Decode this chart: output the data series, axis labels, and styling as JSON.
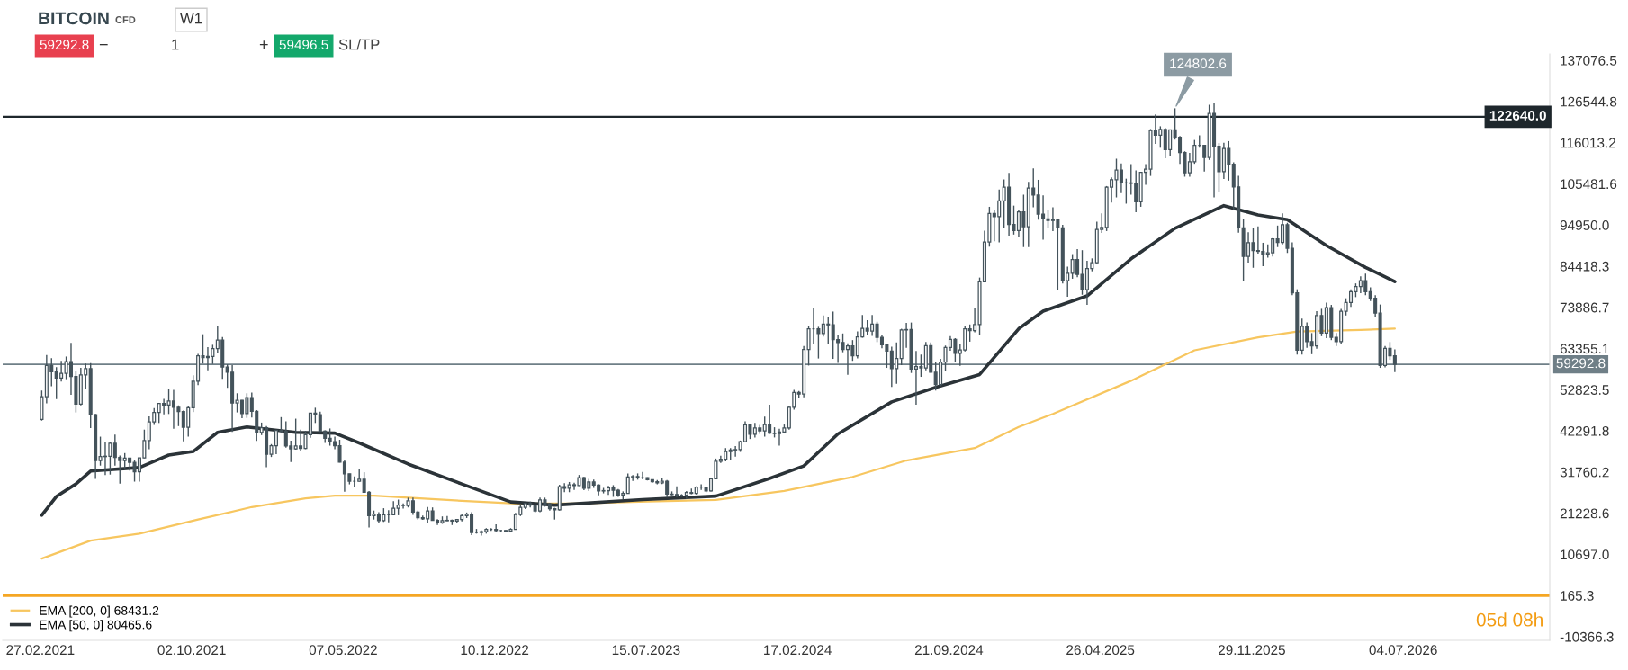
{
  "chart_data": {
    "type": "candlestick",
    "title": "BITCOIN",
    "subtitle": "CFD",
    "color": "#44535b",
    "x": [
      "2021-03-01",
      "2021-03-08",
      "2021-03-15",
      "2021-03-22",
      "2021-03-29",
      "2021-04-05",
      "2021-04-12",
      "2021-04-19",
      "2021-04-26",
      "2021-05-03",
      "2021-05-10",
      "2021-05-17",
      "2021-05-24",
      "2021-05-31",
      "2021-06-07",
      "2021-06-14",
      "2021-06-21",
      "2021-06-28",
      "2021-07-05",
      "2021-07-12",
      "2021-07-19",
      "2021-07-26",
      "2021-08-02",
      "2021-08-09",
      "2021-08-16",
      "2021-08-23",
      "2021-08-30",
      "2021-09-06",
      "2021-09-13",
      "2021-09-20",
      "2021-09-27",
      "2021-10-04",
      "2021-10-11",
      "2021-10-18",
      "2021-10-25",
      "2021-11-01",
      "2021-11-08",
      "2021-11-15",
      "2021-11-22",
      "2021-11-29",
      "2021-12-06",
      "2021-12-13",
      "2021-12-20",
      "2021-12-27",
      "2022-01-03",
      "2022-01-10",
      "2022-01-17",
      "2022-01-24",
      "2022-01-31",
      "2022-02-07",
      "2022-02-14",
      "2022-02-21",
      "2022-02-28",
      "2022-03-07",
      "2022-03-14",
      "2022-03-21",
      "2022-03-28",
      "2022-04-04",
      "2022-04-11",
      "2022-04-18",
      "2022-04-25",
      "2022-05-02",
      "2022-05-09",
      "2022-05-16",
      "2022-05-23",
      "2022-05-30",
      "2022-06-06",
      "2022-06-13",
      "2022-06-20",
      "2022-06-27",
      "2022-07-04",
      "2022-07-11",
      "2022-07-18",
      "2022-07-25",
      "2022-08-01",
      "2022-08-08",
      "2022-08-15",
      "2022-08-22",
      "2022-08-29",
      "2022-09-05",
      "2022-09-12",
      "2022-09-19",
      "2022-09-26",
      "2022-10-03",
      "2022-10-10",
      "2022-10-17",
      "2022-10-24",
      "2022-10-31",
      "2022-11-07",
      "2022-11-14",
      "2022-11-21",
      "2022-11-28",
      "2022-12-05",
      "2022-12-12",
      "2022-12-19",
      "2022-12-26",
      "2023-01-02",
      "2023-01-09",
      "2023-01-16",
      "2023-01-23",
      "2023-01-30",
      "2023-02-06",
      "2023-02-13",
      "2023-02-20",
      "2023-02-27",
      "2023-03-06",
      "2023-03-13",
      "2023-03-20",
      "2023-03-27",
      "2023-04-03",
      "2023-04-10",
      "2023-04-17",
      "2023-04-24",
      "2023-05-01",
      "2023-05-08",
      "2023-05-15",
      "2023-05-22",
      "2023-05-29",
      "2023-06-05",
      "2023-06-12",
      "2023-06-19",
      "2023-06-26",
      "2023-07-03",
      "2023-07-10",
      "2023-07-17",
      "2023-07-24",
      "2023-07-31",
      "2023-08-07",
      "2023-08-14",
      "2023-08-21",
      "2023-08-28",
      "2023-09-04",
      "2023-09-11",
      "2023-09-18",
      "2023-09-25",
      "2023-10-02",
      "2023-10-09",
      "2023-10-16",
      "2023-10-23",
      "2023-10-30",
      "2023-11-06",
      "2023-11-13",
      "2023-11-20",
      "2023-11-27",
      "2023-12-04",
      "2023-12-11",
      "2023-12-18",
      "2023-12-25",
      "2024-01-01",
      "2024-01-08",
      "2024-01-15",
      "2024-01-22",
      "2024-01-29",
      "2024-02-05",
      "2024-02-12",
      "2024-02-19",
      "2024-02-26",
      "2024-03-04",
      "2024-03-11",
      "2024-03-18",
      "2024-03-25",
      "2024-04-01",
      "2024-04-08",
      "2024-04-15",
      "2024-04-22",
      "2024-04-29",
      "2024-05-06",
      "2024-05-13",
      "2024-05-20",
      "2024-05-27",
      "2024-06-03",
      "2024-06-10",
      "2024-06-17",
      "2024-06-24",
      "2024-07-01",
      "2024-07-08",
      "2024-07-15",
      "2024-07-22",
      "2024-07-29",
      "2024-08-05",
      "2024-08-12",
      "2024-08-19",
      "2024-08-26",
      "2024-09-02",
      "2024-09-09",
      "2024-09-16",
      "2024-09-23",
      "2024-09-30",
      "2024-10-07",
      "2024-10-14",
      "2024-10-21",
      "2024-10-28",
      "2024-11-04",
      "2024-11-11",
      "2024-11-18",
      "2024-11-25",
      "2024-12-02",
      "2024-12-09",
      "2024-12-16",
      "2024-12-23",
      "2024-12-30",
      "2025-01-06",
      "2025-01-13",
      "2025-01-20",
      "2025-01-27",
      "2025-02-03",
      "2025-02-10",
      "2025-02-17",
      "2025-02-24",
      "2025-03-03",
      "2025-03-10",
      "2025-03-17",
      "2025-03-24",
      "2025-03-31",
      "2025-04-07",
      "2025-04-14",
      "2025-04-21",
      "2025-04-28",
      "2025-05-05",
      "2025-05-12",
      "2025-05-19",
      "2025-05-26",
      "2025-06-02",
      "2025-06-09",
      "2025-06-16",
      "2025-06-23",
      "2025-06-30",
      "2025-07-07",
      "2025-07-14",
      "2025-07-21",
      "2025-07-28",
      "2025-08-04",
      "2025-08-11",
      "2025-08-18",
      "2025-08-25",
      "2025-09-01",
      "2025-09-08",
      "2025-09-15",
      "2025-09-22",
      "2025-09-29",
      "2025-10-06",
      "2025-10-13",
      "2025-10-20",
      "2025-10-27",
      "2025-11-03",
      "2025-11-10",
      "2025-11-17",
      "2025-11-24",
      "2025-12-01",
      "2025-12-08",
      "2025-12-15",
      "2025-12-22",
      "2025-12-29",
      "2026-01-05",
      "2026-01-12",
      "2026-01-19",
      "2026-01-26",
      "2026-02-02",
      "2026-02-09",
      "2026-02-16",
      "2026-02-23",
      "2026-03-02",
      "2026-03-09",
      "2026-03-16",
      "2026-03-23",
      "2026-03-30",
      "2026-04-06",
      "2026-04-13",
      "2026-04-20",
      "2026-04-27",
      "2026-05-04",
      "2026-05-11",
      "2026-05-18",
      "2026-05-25",
      "2026-06-01",
      "2026-06-08",
      "2026-06-15",
      "2026-06-22"
    ],
    "ohlc": [
      [
        45200,
        52600,
        44900,
        51000
      ],
      [
        51000,
        61700,
        49300,
        59000
      ],
      [
        59000,
        60900,
        53700,
        57400
      ],
      [
        57400,
        58600,
        50400,
        55800
      ],
      [
        55800,
        60200,
        54900,
        57000
      ],
      [
        57000,
        61300,
        55500,
        60000
      ],
      [
        60000,
        64800,
        51500,
        56200
      ],
      [
        56200,
        57500,
        47000,
        49100
      ],
      [
        49100,
        58400,
        48800,
        56600
      ],
      [
        56600,
        59500,
        53000,
        58200
      ],
      [
        58200,
        59600,
        43000,
        46400
      ],
      [
        46400,
        46600,
        30000,
        34700
      ],
      [
        34700,
        40800,
        33400,
        35700
      ],
      [
        35700,
        39400,
        31000,
        35800
      ],
      [
        35800,
        39500,
        31100,
        39100
      ],
      [
        39100,
        41300,
        33400,
        35500
      ],
      [
        35500,
        36000,
        28800,
        34700
      ],
      [
        34700,
        36600,
        32700,
        35300
      ],
      [
        35300,
        35400,
        32100,
        34200
      ],
      [
        34200,
        34700,
        29300,
        31800
      ],
      [
        31800,
        35400,
        29300,
        35400
      ],
      [
        35400,
        42600,
        35300,
        39800
      ],
      [
        39800,
        46000,
        37600,
        44600
      ],
      [
        44600,
        48100,
        43800,
        47000
      ],
      [
        47000,
        49400,
        44300,
        49300
      ],
      [
        49300,
        50500,
        46500,
        48900
      ],
      [
        48900,
        52900,
        46600,
        49900
      ],
      [
        49900,
        52800,
        42800,
        48300
      ],
      [
        48300,
        48800,
        43500,
        47200
      ],
      [
        47200,
        47500,
        39600,
        43200
      ],
      [
        43200,
        48500,
        40800,
        48200
      ],
      [
        48200,
        56500,
        47100,
        55000
      ],
      [
        55000,
        62000,
        54000,
        61500
      ],
      [
        61500,
        67000,
        59500,
        61000
      ],
      [
        61000,
        63700,
        57800,
        61300
      ],
      [
        61300,
        64300,
        59400,
        63300
      ],
      [
        63300,
        69000,
        62300,
        65500
      ],
      [
        65500,
        66300,
        55600,
        58600
      ],
      [
        58600,
        59300,
        53300,
        57300
      ],
      [
        57300,
        59100,
        42000,
        49400
      ],
      [
        49400,
        51900,
        47000,
        50100
      ],
      [
        50100,
        50200,
        45500,
        46700
      ],
      [
        46700,
        51900,
        45600,
        50800
      ],
      [
        50800,
        52100,
        45700,
        47300
      ],
      [
        47300,
        47600,
        39700,
        41900
      ],
      [
        41900,
        44400,
        41200,
        43100
      ],
      [
        43100,
        43500,
        33000,
        36300
      ],
      [
        36300,
        38900,
        35600,
        38500
      ],
      [
        38500,
        42600,
        36300,
        42400
      ],
      [
        42400,
        45800,
        41700,
        42200
      ],
      [
        42200,
        44700,
        38000,
        38400
      ],
      [
        38400,
        39800,
        34300,
        37700
      ],
      [
        37700,
        45400,
        37500,
        38400
      ],
      [
        38400,
        42600,
        37200,
        37800
      ],
      [
        37800,
        42300,
        37600,
        41300
      ],
      [
        41300,
        46900,
        40500,
        46800
      ],
      [
        46800,
        48200,
        44300,
        46400
      ],
      [
        46400,
        47200,
        42000,
        42200
      ],
      [
        42200,
        42400,
        39200,
        40400
      ],
      [
        40400,
        42900,
        38500,
        39500
      ],
      [
        39500,
        40800,
        37600,
        38500
      ],
      [
        38500,
        40000,
        34200,
        34300
      ],
      [
        34300,
        34800,
        26700,
        31300
      ],
      [
        31300,
        31300,
        28600,
        29400
      ],
      [
        29400,
        30600,
        28000,
        29400
      ],
      [
        29400,
        32400,
        29300,
        29900
      ],
      [
        29900,
        31700,
        26600,
        26600
      ],
      [
        26600,
        26900,
        17600,
        20600
      ],
      [
        20600,
        21900,
        19600,
        21000
      ],
      [
        21000,
        21500,
        18700,
        19300
      ],
      [
        19300,
        22500,
        19000,
        20800
      ],
      [
        20800,
        22000,
        18900,
        20800
      ],
      [
        20800,
        24300,
        20700,
        22500
      ],
      [
        22500,
        24700,
        20700,
        23300
      ],
      [
        23300,
        23700,
        22400,
        23200
      ],
      [
        23200,
        25200,
        22700,
        24400
      ],
      [
        24400,
        25200,
        20800,
        21500
      ],
      [
        21500,
        21900,
        19600,
        20100
      ],
      [
        20100,
        20600,
        19500,
        19800
      ],
      [
        19800,
        22800,
        18600,
        21800
      ],
      [
        21800,
        22700,
        19300,
        19400
      ],
      [
        19400,
        19700,
        18200,
        18800
      ],
      [
        18800,
        20400,
        18500,
        19300
      ],
      [
        19300,
        20500,
        19200,
        19400
      ],
      [
        19400,
        19600,
        18200,
        19200
      ],
      [
        19200,
        19700,
        18700,
        19600
      ],
      [
        19600,
        21000,
        19100,
        20600
      ],
      [
        20600,
        21400,
        20000,
        21000
      ],
      [
        21000,
        21500,
        15600,
        16300
      ],
      [
        16300,
        17200,
        16000,
        16300
      ],
      [
        16300,
        16800,
        15500,
        16500
      ],
      [
        16500,
        17400,
        16000,
        17100
      ],
      [
        17100,
        17400,
        16700,
        17100
      ],
      [
        17100,
        18400,
        16500,
        16800
      ],
      [
        16800,
        16900,
        16400,
        16800
      ],
      [
        16800,
        16900,
        16400,
        16600
      ],
      [
        16600,
        17400,
        16600,
        17100
      ],
      [
        17100,
        21300,
        17100,
        20900
      ],
      [
        20900,
        23300,
        20500,
        22700
      ],
      [
        22700,
        23800,
        22300,
        23700
      ],
      [
        23700,
        24200,
        22700,
        23300
      ],
      [
        23300,
        23500,
        21400,
        21800
      ],
      [
        21800,
        25200,
        21500,
        24600
      ],
      [
        24600,
        25200,
        22900,
        23600
      ],
      [
        23600,
        23900,
        21900,
        22400
      ],
      [
        22400,
        22600,
        19600,
        22100
      ],
      [
        22100,
        28500,
        21900,
        28000
      ],
      [
        28000,
        28900,
        26600,
        27600
      ],
      [
        27600,
        29200,
        26600,
        28500
      ],
      [
        28500,
        29000,
        27200,
        28300
      ],
      [
        28300,
        31000,
        28200,
        30300
      ],
      [
        30300,
        30500,
        27100,
        27600
      ],
      [
        27600,
        30000,
        26900,
        29200
      ],
      [
        29200,
        29800,
        27700,
        28400
      ],
      [
        28400,
        28600,
        25800,
        26900
      ],
      [
        26900,
        27700,
        26300,
        27000
      ],
      [
        27000,
        28200,
        25900,
        27700
      ],
      [
        27700,
        28400,
        25400,
        27100
      ],
      [
        27100,
        27400,
        25400,
        25900
      ],
      [
        25900,
        26800,
        24800,
        26300
      ],
      [
        26300,
        31400,
        26200,
        30500
      ],
      [
        30500,
        31000,
        29500,
        30600
      ],
      [
        30600,
        31400,
        29800,
        30300
      ],
      [
        30300,
        31800,
        29900,
        30300
      ],
      [
        30300,
        30400,
        29600,
        29800
      ],
      [
        29800,
        29900,
        29000,
        29300
      ],
      [
        29300,
        29700,
        28600,
        29000
      ],
      [
        29000,
        30200,
        28700,
        29400
      ],
      [
        29400,
        29700,
        25200,
        26100
      ],
      [
        26100,
        26800,
        25800,
        26000
      ],
      [
        26000,
        28100,
        25300,
        25800
      ],
      [
        25800,
        26100,
        25400,
        25800
      ],
      [
        25800,
        26900,
        24900,
        26500
      ],
      [
        26500,
        27500,
        26100,
        26300
      ],
      [
        26300,
        28100,
        26000,
        27900
      ],
      [
        27900,
        28600,
        27200,
        27900
      ],
      [
        27900,
        27900,
        26600,
        26900
      ],
      [
        26900,
        30200,
        26800,
        30000
      ],
      [
        30000,
        35200,
        29900,
        34500
      ],
      [
        34500,
        35900,
        34100,
        35000
      ],
      [
        35000,
        37900,
        34500,
        37000
      ],
      [
        37000,
        37900,
        34800,
        37400
      ],
      [
        37400,
        38400,
        35700,
        37500
      ],
      [
        37500,
        39800,
        36900,
        39500
      ],
      [
        39500,
        44700,
        39300,
        43800
      ],
      [
        43800,
        44000,
        40200,
        41400
      ],
      [
        41400,
        44300,
        40600,
        43000
      ],
      [
        43000,
        43800,
        41500,
        42300
      ],
      [
        42300,
        45900,
        40800,
        43900
      ],
      [
        43900,
        49000,
        41500,
        41700
      ],
      [
        41700,
        43200,
        40600,
        41600
      ],
      [
        41600,
        42800,
        38500,
        42000
      ],
      [
        42000,
        43900,
        41800,
        43000
      ],
      [
        43000,
        48600,
        42600,
        48300
      ],
      [
        48300,
        52800,
        47700,
        52100
      ],
      [
        52100,
        52500,
        50600,
        51700
      ],
      [
        51700,
        64000,
        50900,
        63100
      ],
      [
        63100,
        69000,
        59000,
        68400
      ],
      [
        68400,
        73800,
        64500,
        68400
      ],
      [
        68400,
        68900,
        60800,
        67200
      ],
      [
        67200,
        71800,
        66400,
        69600
      ],
      [
        69600,
        71300,
        64500,
        69400
      ],
      [
        69400,
        72800,
        60700,
        65600
      ],
      [
        65600,
        66900,
        59700,
        64900
      ],
      [
        64900,
        67200,
        62400,
        63100
      ],
      [
        63100,
        64700,
        56600,
        64000
      ],
      [
        64000,
        65500,
        60200,
        61500
      ],
      [
        61500,
        67700,
        60800,
        66300
      ],
      [
        66300,
        71900,
        66100,
        68500
      ],
      [
        68500,
        70600,
        66700,
        67800
      ],
      [
        67800,
        71900,
        66600,
        69600
      ],
      [
        69600,
        70200,
        65000,
        66200
      ],
      [
        66200,
        66900,
        63400,
        64300
      ],
      [
        64300,
        64400,
        58400,
        62700
      ],
      [
        62700,
        63800,
        53500,
        58200
      ],
      [
        58200,
        64900,
        54300,
        60800
      ],
      [
        60800,
        68400,
        59100,
        68100
      ],
      [
        68100,
        69900,
        63500,
        68200
      ],
      [
        68200,
        70000,
        57100,
        58100
      ],
      [
        58100,
        62700,
        49000,
        58700
      ],
      [
        58700,
        61800,
        56100,
        58400
      ],
      [
        58400,
        65000,
        57800,
        64100
      ],
      [
        64100,
        64900,
        57200,
        57300
      ],
      [
        57300,
        59800,
        52600,
        54100
      ],
      [
        54100,
        60700,
        53700,
        59900
      ],
      [
        59900,
        64100,
        57500,
        63600
      ],
      [
        63600,
        66500,
        62800,
        65700
      ],
      [
        65700,
        66000,
        59800,
        62100
      ],
      [
        62100,
        64400,
        58900,
        63000
      ],
      [
        63000,
        69000,
        62600,
        68400
      ],
      [
        68400,
        69500,
        65100,
        67900
      ],
      [
        67900,
        73600,
        67500,
        69500
      ],
      [
        69500,
        81500,
        66800,
        80400
      ],
      [
        80400,
        93500,
        80300,
        90600
      ],
      [
        90600,
        99600,
        89400,
        97900
      ],
      [
        97900,
        98800,
        90800,
        97100
      ],
      [
        97100,
        104000,
        90500,
        101100
      ],
      [
        101100,
        106600,
        94200,
        104600
      ],
      [
        104600,
        108300,
        92200,
        95100
      ],
      [
        95100,
        99900,
        92500,
        93500
      ],
      [
        93500,
        98800,
        91800,
        98300
      ],
      [
        98300,
        102700,
        89300,
        94500
      ],
      [
        94500,
        106000,
        89300,
        104400
      ],
      [
        104400,
        109400,
        99500,
        102600
      ],
      [
        102600,
        106500,
        96300,
        97700
      ],
      [
        97700,
        102500,
        91200,
        96500
      ],
      [
        96500,
        98800,
        94100,
        96100
      ],
      [
        96100,
        99500,
        93400,
        96300
      ],
      [
        96300,
        96500,
        78300,
        94200
      ],
      [
        94200,
        95000,
        80000,
        80700
      ],
      [
        80700,
        84300,
        76600,
        82600
      ],
      [
        82600,
        87500,
        81200,
        86100
      ],
      [
        86100,
        88800,
        81600,
        82300
      ],
      [
        82300,
        88500,
        77100,
        78400
      ],
      [
        78400,
        85800,
        74500,
        83800
      ],
      [
        83800,
        86400,
        83100,
        85300
      ],
      [
        85300,
        95800,
        85100,
        93800
      ],
      [
        93800,
        97900,
        92900,
        94300
      ],
      [
        94300,
        104900,
        93400,
        104600
      ],
      [
        104600,
        107100,
        100700,
        106500
      ],
      [
        106500,
        111900,
        102000,
        109000
      ],
      [
        109000,
        110700,
        103100,
        105700
      ],
      [
        105700,
        106800,
        100400,
        105700
      ],
      [
        105700,
        110500,
        102700,
        105600
      ],
      [
        105600,
        108900,
        98200,
        100900
      ],
      [
        100900,
        108500,
        99600,
        108400
      ],
      [
        108400,
        110500,
        105200,
        109200
      ],
      [
        109200,
        119500,
        107500,
        119100
      ],
      [
        119100,
        123200,
        115700,
        117900
      ],
      [
        117900,
        120200,
        114700,
        119400
      ],
      [
        119400,
        119800,
        112000,
        114200
      ],
      [
        114200,
        119300,
        112700,
        119300
      ],
      [
        119300,
        124802.6,
        116800,
        117400
      ],
      [
        117400,
        117700,
        110600,
        113500
      ],
      [
        113500,
        113800,
        107300,
        108300
      ],
      [
        108300,
        113400,
        107300,
        111100
      ],
      [
        111100,
        116700,
        110600,
        115300
      ],
      [
        115300,
        117900,
        114700,
        115300
      ],
      [
        115300,
        115400,
        108600,
        112200
      ],
      [
        112200,
        125700,
        111600,
        123500
      ],
      [
        123500,
        126200,
        102000,
        115100
      ],
      [
        115100,
        115900,
        103500,
        108600
      ],
      [
        108600,
        116000,
        106700,
        114500
      ],
      [
        114500,
        116400,
        106300,
        110500
      ],
      [
        110500,
        111000,
        98900,
        104700
      ],
      [
        104700,
        107500,
        93000,
        94200
      ],
      [
        94200,
        96600,
        80500,
        86900
      ],
      [
        86900,
        93100,
        85300,
        90400
      ],
      [
        90400,
        94200,
        84000,
        88400
      ],
      [
        88400,
        94600,
        87600,
        88200
      ],
      [
        88200,
        90400,
        84400,
        87500
      ],
      [
        87500,
        90000,
        86600,
        87800
      ],
      [
        87800,
        91600,
        86900,
        91400
      ],
      [
        91400,
        94800,
        89300,
        90500
      ],
      [
        90500,
        97900,
        90000,
        95000
      ],
      [
        95000,
        95500,
        87800,
        89000
      ],
      [
        89000,
        90500,
        77000,
        77600
      ],
      [
        77600,
        78500,
        61800,
        62900
      ],
      [
        62900,
        71000,
        61800,
        69000
      ],
      [
        69000,
        70000,
        63500,
        65100
      ],
      [
        65100,
        67300,
        61900,
        64000
      ],
      [
        64000,
        72900,
        63300,
        71800
      ],
      [
        71800,
        73500,
        66500,
        67300
      ],
      [
        67300,
        75100,
        66000,
        73800
      ],
      [
        73800,
        74500,
        65500,
        66200
      ],
      [
        66200,
        67300,
        64000,
        65100
      ],
      [
        65100,
        73500,
        64500,
        72900
      ],
      [
        72900,
        76200,
        71800,
        75100
      ],
      [
        75100,
        78500,
        74000,
        77900
      ],
      [
        77900,
        80000,
        76500,
        79200
      ],
      [
        79200,
        81800,
        77500,
        80700
      ],
      [
        80700,
        82500,
        77000,
        77900
      ],
      [
        77900,
        79000,
        75500,
        76200
      ],
      [
        76200,
        77000,
        71500,
        72400
      ],
      [
        72400,
        74600,
        58400,
        59000
      ],
      [
        59000,
        64000,
        58500,
        63400
      ],
      [
        63400,
        65000,
        60500,
        61500
      ],
      [
        61500,
        63100,
        57300,
        59292.8
      ]
    ],
    "series": [
      {
        "name": "EMA [200, 0] 68431.2",
        "type": "line",
        "color": "#f7c65f",
        "x": [
          "2021-03-01",
          "2021-05-10",
          "2021-07-19",
          "2021-10-11",
          "2021-12-27",
          "2022-03-14",
          "2022-04-25",
          "2022-06-20",
          "2022-10-03",
          "2023-01-09",
          "2023-04-03",
          "2023-07-17",
          "2023-10-23",
          "2024-01-29",
          "2024-05-06",
          "2024-07-22",
          "2024-10-28",
          "2024-12-30",
          "2025-02-17",
          "2025-06-09",
          "2025-09-08",
          "2025-12-08",
          "2026-02-02",
          "2026-05-04",
          "2026-06-22"
        ],
        "values": [
          9600,
          14200,
          16000,
          19600,
          22800,
          25000,
          25700,
          25700,
          24600,
          23700,
          23700,
          24200,
          24600,
          26900,
          30500,
          34700,
          37900,
          43300,
          46600,
          55100,
          62900,
          66200,
          67700,
          68100,
          68431.2
        ]
      },
      {
        "name": "EMA [50, 0] 80465.6",
        "type": "line",
        "color": "#2b3338",
        "x": [
          "2021-03-01",
          "2021-03-22",
          "2021-04-19",
          "2021-05-10",
          "2021-07-19",
          "2021-08-30",
          "2021-10-04",
          "2021-11-08",
          "2021-12-20",
          "2022-02-28",
          "2022-04-25",
          "2022-05-30",
          "2022-08-08",
          "2022-10-24",
          "2023-01-02",
          "2023-03-06",
          "2023-07-10",
          "2023-10-23",
          "2024-01-08",
          "2024-02-26",
          "2024-04-15",
          "2024-07-01",
          "2024-09-02",
          "2024-11-04",
          "2024-12-30",
          "2025-02-03",
          "2025-04-07",
          "2025-06-09",
          "2025-08-11",
          "2025-10-20",
          "2025-12-08",
          "2026-01-19",
          "2026-03-16",
          "2026-05-11",
          "2026-06-22"
        ],
        "values": [
          20700,
          25500,
          28700,
          32000,
          32900,
          36100,
          37000,
          41900,
          43300,
          41900,
          41700,
          39200,
          33800,
          28700,
          24100,
          23300,
          24700,
          25600,
          30100,
          33300,
          41500,
          49700,
          53400,
          56700,
          68400,
          72900,
          76800,
          86300,
          94100,
          99900,
          97500,
          96300,
          89700,
          84100,
          80465.6
        ]
      }
    ],
    "xlim": [
      "2021-01-04",
      "2027-01-30"
    ],
    "xticks": [
      {
        "value": "2021-02-27",
        "label": "27.02.2021"
      },
      {
        "value": "2021-10-02",
        "label": "02.10.2021"
      },
      {
        "value": "2022-05-07",
        "label": "07.05.2022"
      },
      {
        "value": "2022-12-10",
        "label": "10.12.2022"
      },
      {
        "value": "2023-07-15",
        "label": "15.07.2023"
      },
      {
        "value": "2024-02-17",
        "label": "17.02.2024"
      },
      {
        "value": "2024-09-21",
        "label": "21.09.2024"
      },
      {
        "value": "2025-04-26",
        "label": "26.04.2025"
      },
      {
        "value": "2025-11-29",
        "label": "29.11.2025"
      },
      {
        "value": "2026-07-04",
        "label": "04.07.2026"
      }
    ],
    "ylim": [
      -11300,
      138700
    ],
    "yticks": [
      137076.5,
      126544.8,
      116013.2,
      105481.6,
      {
        "value": 94950,
        "label": "94950.0"
      },
      84418.3,
      73886.7,
      63355.1,
      52823.5,
      42291.8,
      31760.2,
      21228.6,
      {
        "value": 10697,
        "label": "10697.0"
      },
      165.3,
      -10366.3
    ],
    "ref_lines": [
      {
        "axis": "y",
        "value": 59292.8,
        "label": "59292.8",
        "color": "#6f7f87"
      },
      {
        "axis": "y",
        "value": 122640,
        "label": "122640.0",
        "color": "#1e272c"
      },
      {
        "axis": "y",
        "value": 165.3,
        "color": "#f5a623"
      }
    ],
    "annotations": [
      "W1",
      "59292.8",
      "−",
      "1",
      "+",
      "59496.5",
      "SL/TP",
      "05d 08h",
      {
        "text": "124802.6",
        "x": "2025-08-11",
        "y": 124802.6
      }
    ],
    "legend": "bottom left",
    "grid": false
  }
}
